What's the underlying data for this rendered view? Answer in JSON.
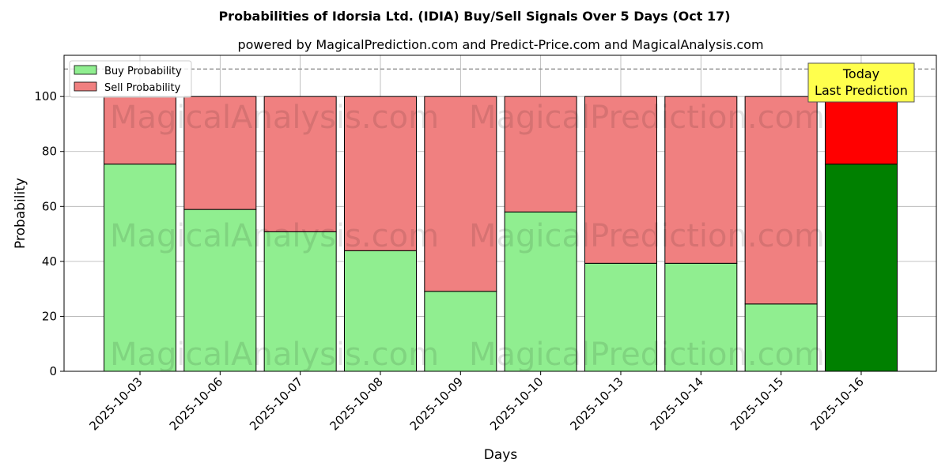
{
  "chart_data": {
    "type": "bar",
    "stacked": true,
    "title": "Probabilities of Idorsia Ltd. (IDIA) Buy/Sell Signals Over 5 Days (Oct 17)",
    "subtitle": "powered by MagicalPrediction.com and Predict-Price.com and MagicalAnalysis.com",
    "xlabel": "Days",
    "ylabel": "Probability",
    "ylim": [
      0,
      115
    ],
    "yticks": [
      0,
      20,
      40,
      60,
      80,
      100
    ],
    "reference_line": 110,
    "grid": true,
    "legend_position": "top-left",
    "categories": [
      "2025-10-03",
      "2025-10-06",
      "2025-10-07",
      "2025-10-08",
      "2025-10-09",
      "2025-10-10",
      "2025-10-13",
      "2025-10-14",
      "2025-10-15",
      "2025-10-16"
    ],
    "series": [
      {
        "name": "Buy Probability",
        "color": "#90ee90",
        "highlight_color": "#008000",
        "values": [
          75.4,
          58.9,
          50.8,
          43.9,
          29.1,
          58.0,
          39.3,
          39.3,
          24.5,
          75.4
        ]
      },
      {
        "name": "Sell Probability",
        "color": "#f08080",
        "highlight_color": "#ff0000",
        "values": [
          24.6,
          41.1,
          49.2,
          56.1,
          70.9,
          42.0,
          60.7,
          60.7,
          75.5,
          24.6
        ]
      }
    ],
    "highlight_index": 9,
    "annotation": {
      "line1": "Today",
      "line2": "Last Prediction",
      "background": "#ffff4d"
    },
    "watermarks": [
      "MagicalAnalysis.com",
      "MagicalPrediction.com"
    ]
  }
}
